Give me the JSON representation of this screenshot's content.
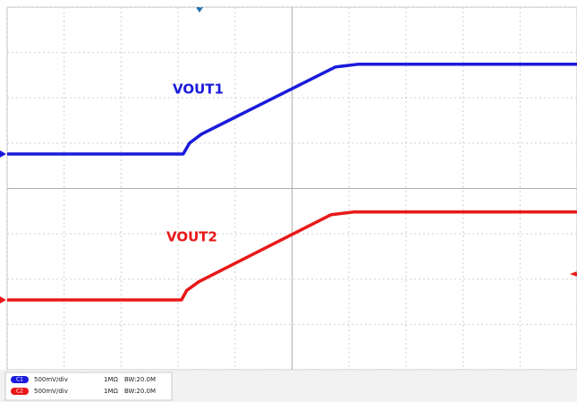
{
  "chart_data": {
    "type": "line",
    "xlim": [
      0,
      10
    ],
    "ylim": [
      0,
      8
    ],
    "xticks": [
      0,
      1,
      2,
      3,
      4,
      5,
      6,
      7,
      8,
      9,
      10
    ],
    "yticks": [
      0,
      1,
      2,
      3,
      4,
      5,
      6,
      7,
      8
    ],
    "grid": true,
    "series": [
      {
        "name": "VOUT1",
        "color": "#1a1adc",
        "x": [
          0,
          3.09,
          3.2,
          3.41,
          5.76,
          6.15,
          10
        ],
        "values": [
          4.76,
          4.76,
          5.0,
          5.2,
          6.68,
          6.74,
          6.74
        ]
      },
      {
        "name": "VOUT2",
        "color": "#e81818",
        "x": [
          0,
          3.06,
          3.15,
          3.36,
          5.68,
          6.08,
          10
        ],
        "values": [
          1.54,
          1.54,
          1.75,
          1.94,
          3.42,
          3.48,
          3.48
        ]
      }
    ],
    "channels": [
      {
        "badge": "C1",
        "scale": "500mV/div",
        "impedance": "1MΩ",
        "bandwidth": "BW:20.0M"
      },
      {
        "badge": "C2",
        "scale": "500mV/div",
        "impedance": "1MΩ",
        "bandwidth": "BW:20.0M"
      }
    ]
  }
}
